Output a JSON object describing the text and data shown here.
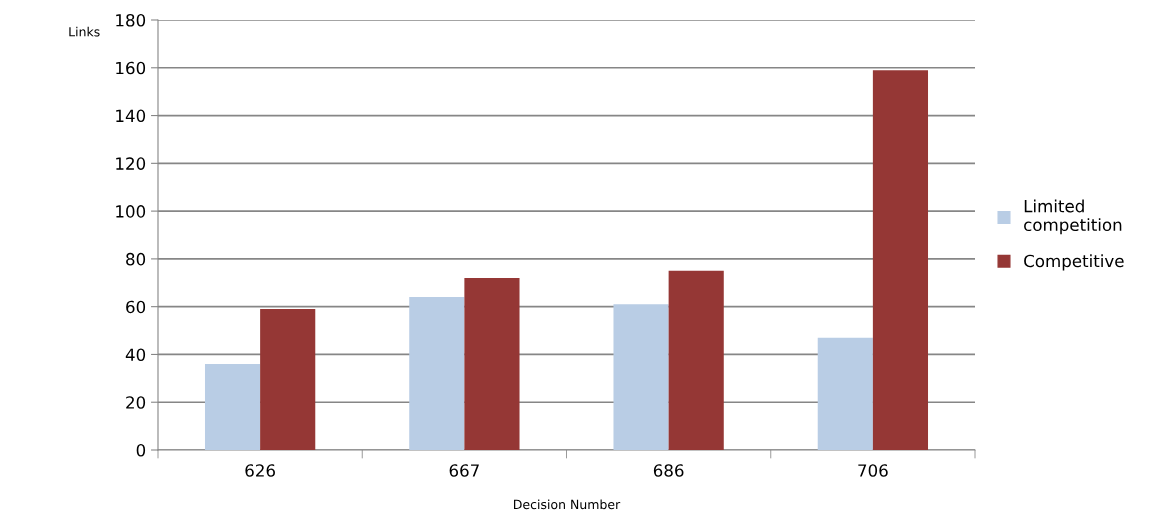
{
  "chart_data": {
    "type": "bar",
    "xlabel": "Decision Number",
    "ylabel": "Links",
    "categories": [
      "626",
      "667",
      "686",
      "706"
    ],
    "series": [
      {
        "name": "Limited\ncompetition",
        "color": "#b9cde5",
        "values": [
          36,
          64,
          61,
          47
        ]
      },
      {
        "name": "Competitive",
        "color": "#953735",
        "values": [
          59,
          72,
          75,
          159
        ]
      }
    ],
    "ylim": [
      0,
      180
    ],
    "yticks": [
      0,
      20,
      40,
      60,
      80,
      100,
      120,
      140,
      160,
      180
    ],
    "grid": "y",
    "legend": "right"
  }
}
